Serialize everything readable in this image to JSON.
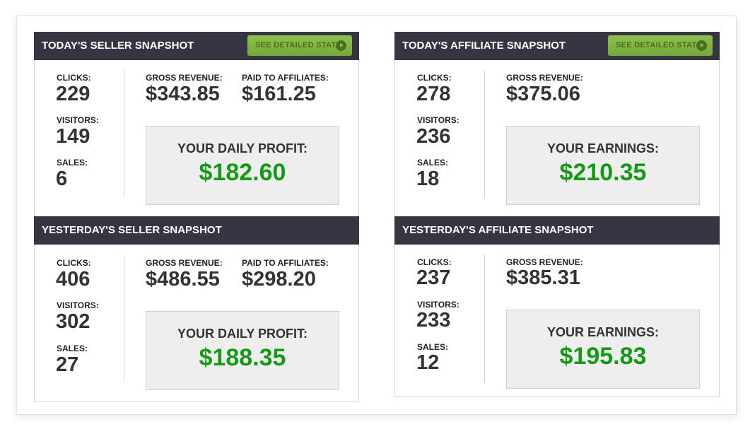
{
  "button_label": "SEE DETAILED STATS",
  "labels": {
    "clicks": "CLICKS:",
    "visitors": "VISITORS:",
    "sales": "SALES:",
    "gross": "GROSS REVENUE:",
    "paid": "PAID TO AFFILIATES:"
  },
  "today_seller": {
    "title": "TODAY'S SELLER SNAPSHOT",
    "clicks": "229",
    "visitors": "149",
    "sales": "6",
    "gross": "$343.85",
    "paid": "$161.25",
    "profit_label": "YOUR DAILY PROFIT:",
    "profit": "$182.60"
  },
  "yesterday_seller": {
    "title": "YESTERDAY'S SELLER SNAPSHOT",
    "clicks": "406",
    "visitors": "302",
    "sales": "27",
    "gross": "$486.55",
    "paid": "$298.20",
    "profit_label": "YOUR DAILY PROFIT:",
    "profit": "$188.35"
  },
  "today_affiliate": {
    "title": "TODAY'S AFFILIATE SNAPSHOT",
    "clicks": "278",
    "visitors": "236",
    "sales": "18",
    "gross": "$375.06",
    "profit_label": "YOUR EARNINGS:",
    "profit": "$210.35"
  },
  "yesterday_affiliate": {
    "title": "YESTERDAY'S AFFILIATE SNAPSHOT",
    "clicks": "237",
    "visitors": "233",
    "sales": "12",
    "gross": "$385.31",
    "profit_label": "YOUR EARNINGS:",
    "profit": "$195.83"
  },
  "colors": {
    "header": "#353641",
    "button": "#7fb341",
    "profit": "#159a15"
  }
}
